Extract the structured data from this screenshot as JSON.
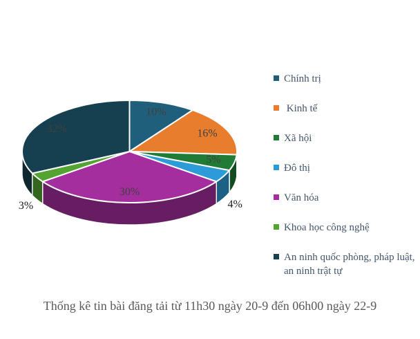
{
  "page": {
    "background": "#ffffff"
  },
  "chart_data": {
    "type": "pie",
    "style": "3d",
    "title": "Thống kê tin bài đăng tải từ 11h30 ngày 20-9 đến 06h00 ngày 22-9",
    "title_color": "#595959",
    "legend_position": "right",
    "legend_text_color": "#44546A",
    "start_angle_deg": 0,
    "direction": "clockwise",
    "inside_label_color": "#404040",
    "outside_label_color": "#1a1a1a",
    "separator_color": "#ffffff",
    "slices": [
      {
        "label": "Chính trị",
        "value": 10,
        "display": "10%",
        "color": "#205F7C"
      },
      {
        "label": " Kinh tế",
        "value": 16,
        "display": "16%",
        "color": "#E97D2E"
      },
      {
        "label": "Xã hội",
        "value": 5,
        "display": "5%",
        "color": "#1F7B35"
      },
      {
        "label": "Đô thị",
        "value": 4,
        "display": "4%",
        "color": "#2C9BD7"
      },
      {
        "label": "Văn hóa",
        "value": 30,
        "display": "30%",
        "color": "#A52E9E"
      },
      {
        "label": "Khoa học công nghệ",
        "value": 3,
        "display": "3%",
        "color": "#54A432"
      },
      {
        "label": "An ninh quốc phòng, pháp luật, an ninh trật tự",
        "value": 32,
        "display": "32%",
        "color": "#163F4F"
      }
    ]
  }
}
